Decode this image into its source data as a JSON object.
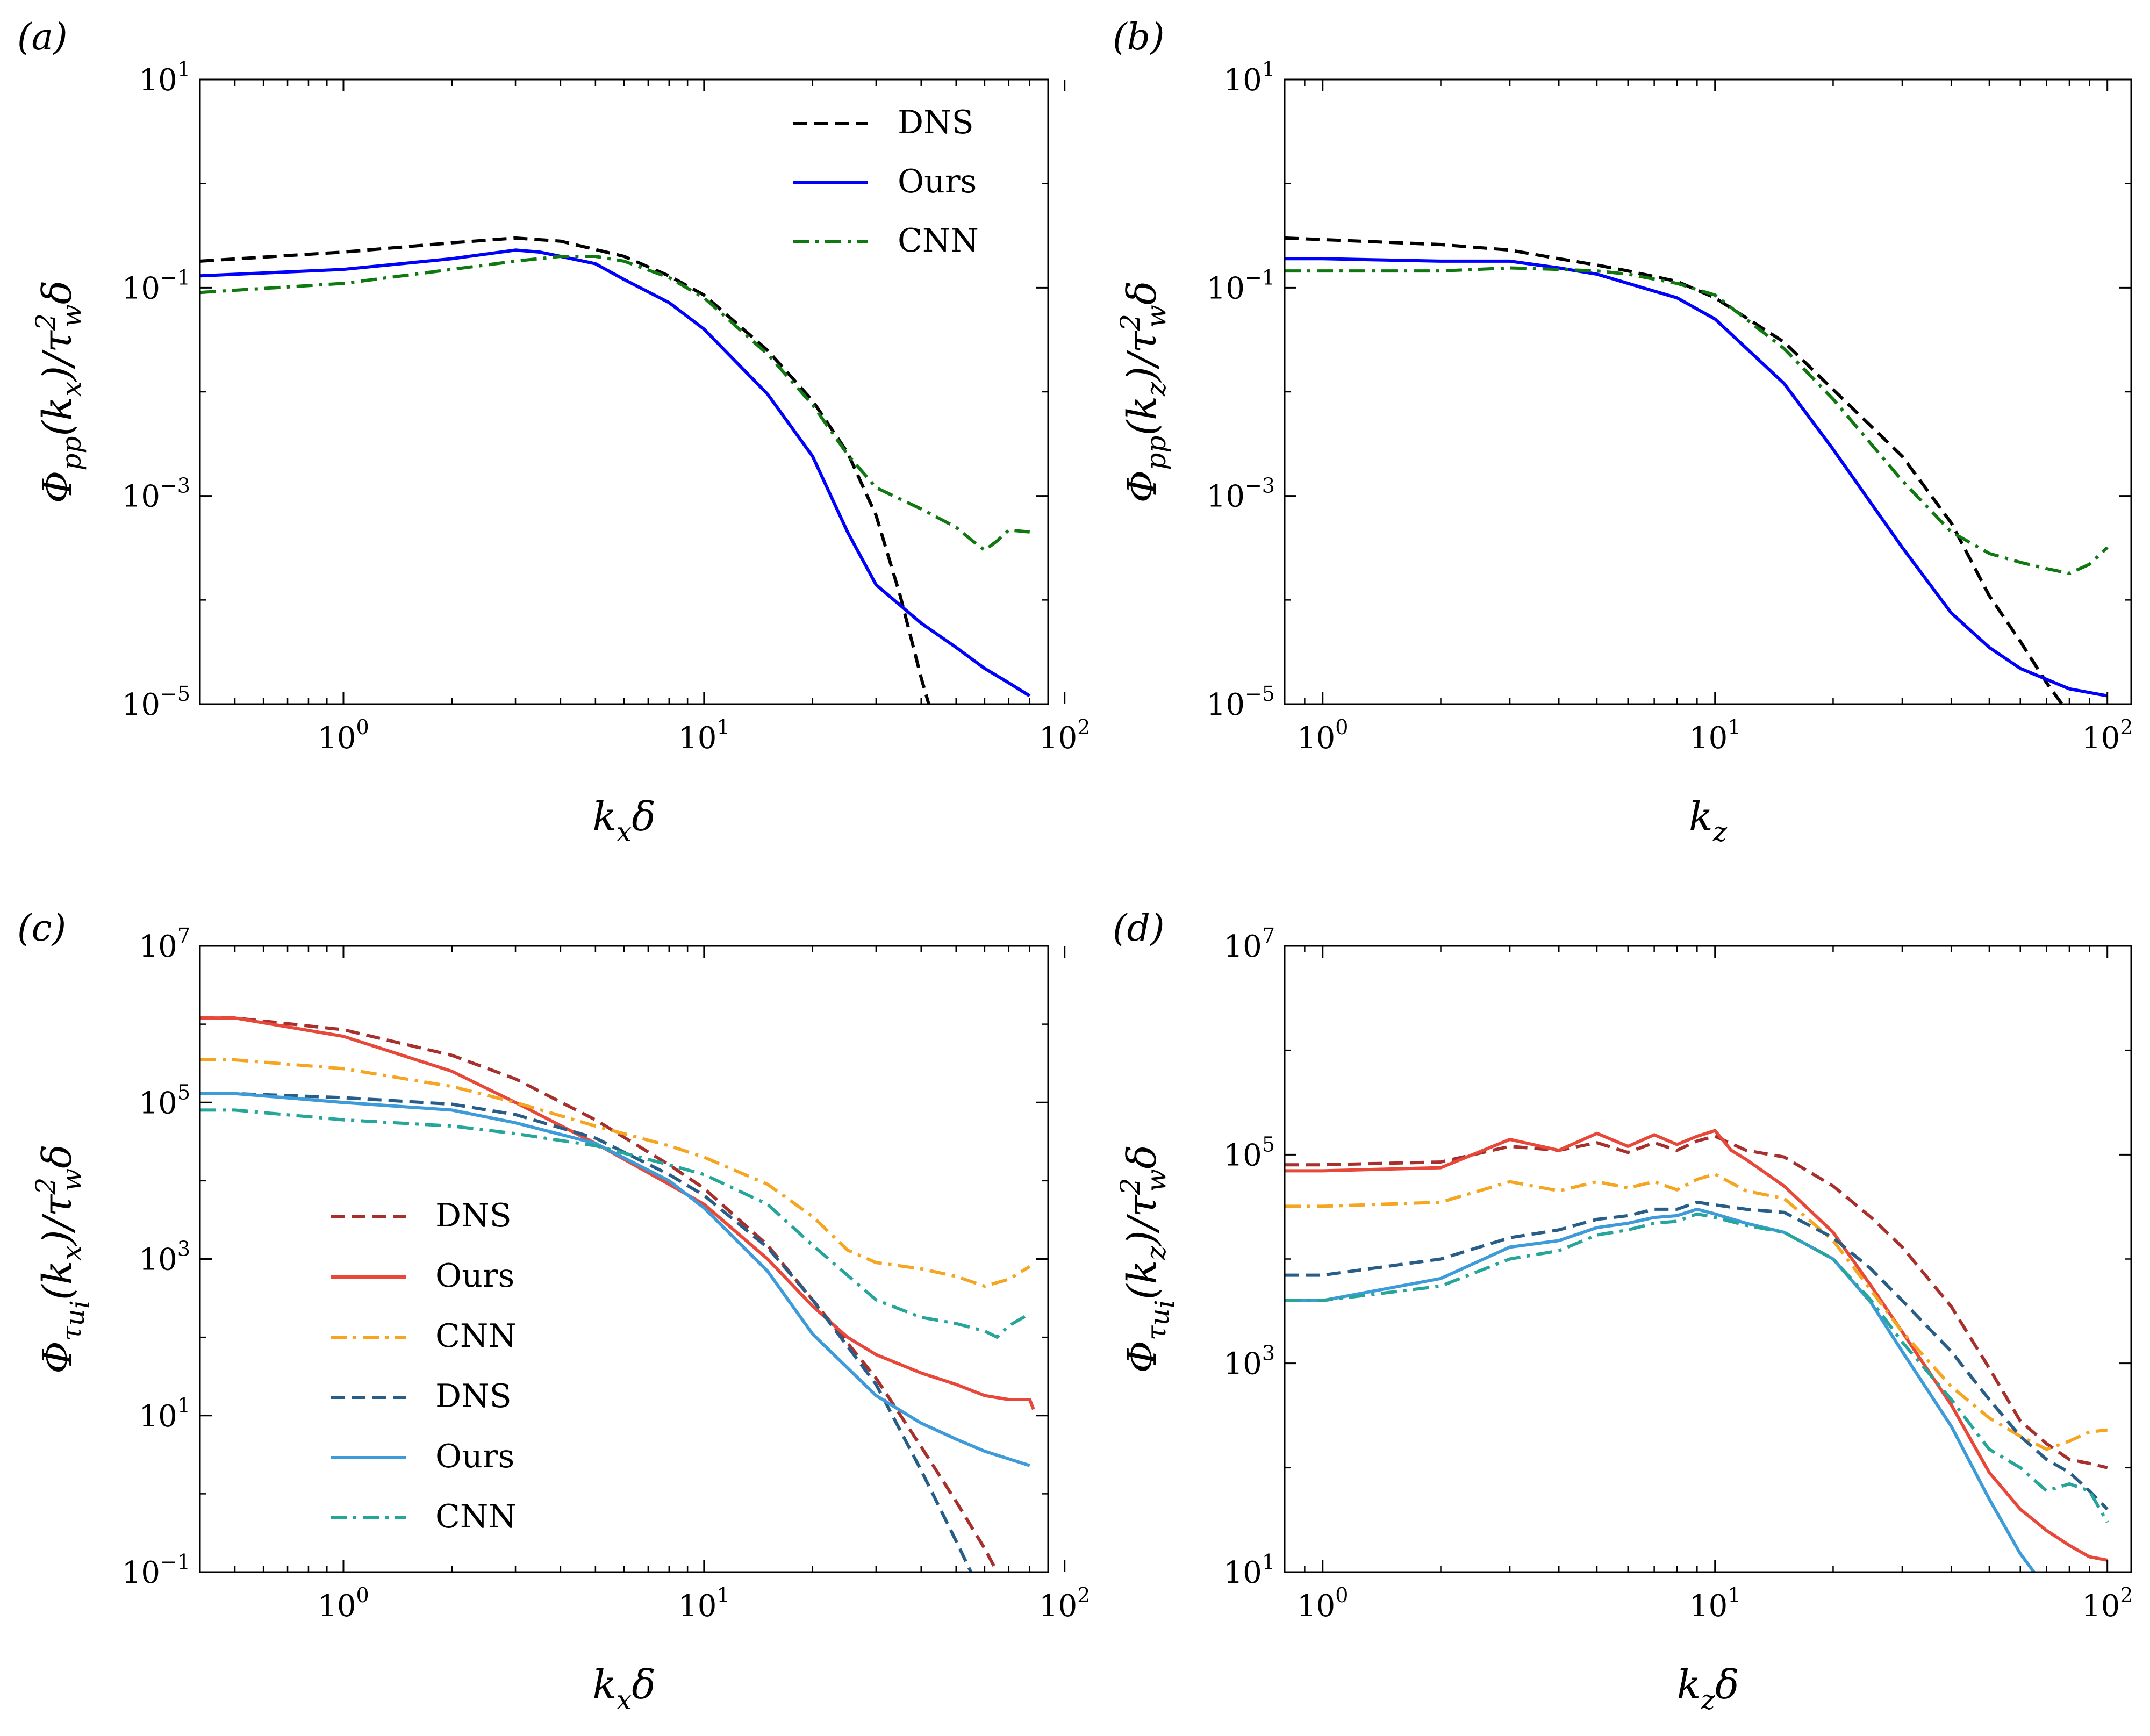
{
  "chart_data": [
    {
      "id": "a",
      "type": "line",
      "panel_label": "(a)",
      "xscale": "log",
      "yscale": "log",
      "xlim": [
        0.4,
        90
      ],
      "ylim": [
        1e-05,
        10
      ],
      "xticks": [
        {
          "base": "10",
          "exp": "0",
          "value": 1
        },
        {
          "base": "10",
          "exp": "1",
          "value": 10
        },
        {
          "base": "10",
          "exp": "2",
          "value": 100
        }
      ],
      "yticks": [
        {
          "base": "10",
          "exp": "−5",
          "value": 1e-05
        },
        {
          "base": "10",
          "exp": "−3",
          "value": 0.001
        },
        {
          "base": "10",
          "exp": "−1",
          "value": 0.1
        },
        {
          "base": "10",
          "exp": "1",
          "value": 10
        }
      ],
      "xlabel": {
        "main": "k",
        "sub": "x",
        "tail": "δ"
      },
      "ylabel": "Φ_pp(k_x)/τ_w^2δ",
      "legend": "top-right",
      "series": [
        {
          "name": "DNS",
          "color": "#000000",
          "dash": "dashed",
          "x": [
            0.4,
            1,
            2,
            3,
            4,
            6,
            8,
            10,
            15,
            20,
            25,
            30,
            35,
            40,
            42
          ],
          "y": [
            0.18,
            0.22,
            0.27,
            0.3,
            0.28,
            0.2,
            0.13,
            0.085,
            0.025,
            0.0082,
            0.0026,
            0.00065,
            0.00011,
            1.8e-05,
            1e-05
          ]
        },
        {
          "name": "Ours",
          "color": "#0000ff",
          "dash": "solid",
          "x": [
            0.4,
            1,
            2,
            3,
            3.5,
            4,
            5,
            6,
            8,
            10,
            15,
            20,
            25,
            30,
            40,
            50,
            60,
            70,
            80
          ],
          "y": [
            0.13,
            0.15,
            0.19,
            0.23,
            0.22,
            0.2,
            0.17,
            0.12,
            0.072,
            0.04,
            0.0095,
            0.0024,
            0.00045,
            0.00014,
            6e-05,
            3.5e-05,
            2.2e-05,
            1.6e-05,
            1.2e-05
          ]
        },
        {
          "name": "CNN",
          "color": "#107810",
          "dash": "dashdot",
          "x": [
            0.4,
            1,
            2,
            3,
            4,
            5,
            6,
            8,
            10,
            15,
            20,
            25,
            30,
            40,
            50,
            55,
            60,
            65,
            70,
            80
          ],
          "y": [
            0.09,
            0.11,
            0.15,
            0.18,
            0.2,
            0.2,
            0.18,
            0.125,
            0.08,
            0.023,
            0.0075,
            0.0025,
            0.0012,
            0.00075,
            0.0005,
            0.00038,
            0.0003,
            0.00037,
            0.00047,
            0.00045
          ]
        }
      ]
    },
    {
      "id": "b",
      "type": "line",
      "panel_label": "(b)",
      "xscale": "log",
      "yscale": "log",
      "xlim": [
        0.8,
        115
      ],
      "ylim": [
        1e-05,
        10
      ],
      "xticks": [
        {
          "base": "10",
          "exp": "0",
          "value": 1
        },
        {
          "base": "10",
          "exp": "1",
          "value": 10
        },
        {
          "base": "10",
          "exp": "2",
          "value": 100
        }
      ],
      "yticks": [
        {
          "base": "10",
          "exp": "−5",
          "value": 1e-05
        },
        {
          "base": "10",
          "exp": "−3",
          "value": 0.001
        },
        {
          "base": "10",
          "exp": "−1",
          "value": 0.1
        },
        {
          "base": "10",
          "exp": "1",
          "value": 10
        }
      ],
      "xlabel": {
        "main": "k",
        "sub": "z",
        "tail": ""
      },
      "ylabel": "Φ_pp(k_z)/τ_w^2δ",
      "series": [
        {
          "name": "DNS",
          "color": "#000000",
          "dash": "dashed",
          "x": [
            0.8,
            1,
            2,
            3,
            4,
            5,
            6,
            8,
            10,
            15,
            20,
            30,
            40,
            50,
            60,
            70,
            80
          ],
          "y": [
            0.3,
            0.29,
            0.26,
            0.23,
            0.19,
            0.165,
            0.145,
            0.115,
            0.08,
            0.03,
            0.0105,
            0.0024,
            0.00055,
            0.00011,
            4e-05,
            1.6e-05,
            8e-06
          ]
        },
        {
          "name": "Ours",
          "color": "#0000ff",
          "dash": "solid",
          "x": [
            0.8,
            1,
            2,
            3,
            4,
            5,
            6,
            8,
            10,
            15,
            20,
            30,
            40,
            50,
            60,
            80,
            100
          ],
          "y": [
            0.19,
            0.19,
            0.18,
            0.18,
            0.155,
            0.135,
            0.11,
            0.08,
            0.05,
            0.012,
            0.0028,
            0.00032,
            7.5e-05,
            3.5e-05,
            2.2e-05,
            1.4e-05,
            1.2e-05
          ]
        },
        {
          "name": "CNN",
          "color": "#107810",
          "dash": "dashdot",
          "x": [
            0.8,
            1,
            2,
            3,
            4,
            5,
            6,
            8,
            10,
            15,
            20,
            30,
            40,
            50,
            60,
            70,
            80,
            90,
            100
          ],
          "y": [
            0.145,
            0.145,
            0.145,
            0.155,
            0.15,
            0.145,
            0.135,
            0.11,
            0.085,
            0.026,
            0.0085,
            0.0014,
            0.00045,
            0.00028,
            0.00023,
            0.0002,
            0.00018,
            0.00022,
            0.00032
          ]
        }
      ]
    },
    {
      "id": "c",
      "type": "line",
      "panel_label": "(c)",
      "xscale": "log",
      "yscale": "log",
      "xlim": [
        0.4,
        90
      ],
      "ylim": [
        0.1,
        10000000.0
      ],
      "xticks": [
        {
          "base": "10",
          "exp": "0",
          "value": 1
        },
        {
          "base": "10",
          "exp": "1",
          "value": 10
        },
        {
          "base": "10",
          "exp": "2",
          "value": 100
        }
      ],
      "yticks": [
        {
          "base": "10",
          "exp": "−1",
          "value": 0.1
        },
        {
          "base": "10",
          "exp": "1",
          "value": 10
        },
        {
          "base": "10",
          "exp": "3",
          "value": 1000
        },
        {
          "base": "10",
          "exp": "5",
          "value": 100000.0
        },
        {
          "base": "10",
          "exp": "7",
          "value": 10000000.0
        }
      ],
      "xlabel": {
        "main": "k",
        "sub": "x",
        "tail": "δ"
      },
      "ylabel": "Φ_τu_i(k_x)/τ_w^2δ",
      "legend": "center-left",
      "series": [
        {
          "name": "DNS",
          "color": "#a8302c",
          "dash": "dashed",
          "x": [
            0.4,
            0.5,
            1,
            2,
            3,
            5,
            8,
            10,
            15,
            20,
            30,
            40,
            50,
            60,
            65
          ],
          "y": [
            1200000.0,
            1200000.0,
            850000.0,
            400000.0,
            200000.0,
            60000.0,
            16000.0,
            8000,
            1500,
            300,
            30,
            4,
            0.8,
            0.2,
            0.1
          ]
        },
        {
          "name": "Ours",
          "color": "#e8483a",
          "dash": "solid",
          "x": [
            0.4,
            0.5,
            1,
            2,
            3,
            5,
            8,
            10,
            15,
            20,
            25,
            30,
            40,
            50,
            60,
            70,
            80,
            82
          ],
          "y": [
            1200000.0,
            1200000.0,
            700000.0,
            250000.0,
            100000.0,
            30000.0,
            9000,
            5000,
            1000,
            250,
            100,
            60,
            35,
            25,
            18,
            16,
            16,
            12
          ]
        },
        {
          "name": "CNN",
          "color": "#f5a520",
          "dash": "dashdot",
          "x": [
            0.4,
            0.5,
            1,
            2,
            3,
            5,
            8,
            10,
            15,
            20,
            25,
            30,
            40,
            50,
            60,
            70,
            80
          ],
          "y": [
            350000.0,
            350000.0,
            270000.0,
            160000.0,
            100000.0,
            50000.0,
            28000.0,
            20000.0,
            9000,
            3500,
            1300,
            900,
            750,
            600,
            450,
            550,
            800
          ]
        },
        {
          "name": "DNS",
          "color": "#275d87",
          "dash": "dashed",
          "x": [
            0.4,
            0.5,
            1,
            2,
            3,
            5,
            8,
            10,
            15,
            20,
            30,
            40,
            50,
            55
          ],
          "y": [
            130000.0,
            130000.0,
            115000.0,
            95000.0,
            70000.0,
            35000.0,
            12000.0,
            6500,
            1400,
            300,
            25,
            2,
            0.25,
            0.1
          ]
        },
        {
          "name": "Ours",
          "color": "#3e9bd9",
          "dash": "solid",
          "x": [
            0.4,
            0.5,
            1,
            2,
            3,
            5,
            8,
            10,
            15,
            20,
            30,
            40,
            50,
            60,
            70,
            80
          ],
          "y": [
            130000.0,
            130000.0,
            100000.0,
            80000.0,
            55000.0,
            30000.0,
            10000.0,
            4500,
            700,
            110,
            18,
            8,
            5,
            3.5,
            2.8,
            2.3
          ]
        },
        {
          "name": "CNN",
          "color": "#26a69a",
          "dash": "dashdot",
          "x": [
            0.4,
            0.5,
            1,
            2,
            3,
            5,
            8,
            10,
            15,
            20,
            30,
            40,
            50,
            60,
            65,
            70,
            80
          ],
          "y": [
            80000.0,
            80000.0,
            60000.0,
            50000.0,
            40000.0,
            28000.0,
            16000.0,
            12000.0,
            5000,
            1500,
            300,
            180,
            150,
            120,
            100,
            140,
            200
          ]
        }
      ]
    },
    {
      "id": "d",
      "type": "line",
      "panel_label": "(d)",
      "xscale": "log",
      "yscale": "log",
      "xlim": [
        0.8,
        115
      ],
      "ylim": [
        10,
        10000000.0
      ],
      "xticks": [
        {
          "base": "10",
          "exp": "0",
          "value": 1
        },
        {
          "base": "10",
          "exp": "1",
          "value": 10
        },
        {
          "base": "10",
          "exp": "2",
          "value": 100
        }
      ],
      "yticks": [
        {
          "base": "10",
          "exp": "1",
          "value": 10
        },
        {
          "base": "10",
          "exp": "3",
          "value": 1000
        },
        {
          "base": "10",
          "exp": "5",
          "value": 100000.0
        },
        {
          "base": "10",
          "exp": "7",
          "value": 10000000.0
        }
      ],
      "xlabel": {
        "main": "k",
        "sub": "z",
        "tail": "δ"
      },
      "ylabel": "Φ_τu_i(k_z)/τ_w^2δ",
      "series": [
        {
          "name": "DNS",
          "color": "#a8302c",
          "dash": "dashed",
          "x": [
            0.8,
            1,
            2,
            3,
            4,
            5,
            6,
            7,
            8,
            9,
            10,
            12,
            15,
            20,
            25,
            30,
            40,
            50,
            60,
            70,
            80,
            90,
            100
          ],
          "y": [
            80000.0,
            80000.0,
            85000.0,
            120000.0,
            110000.0,
            130000.0,
            105000.0,
            130000.0,
            110000.0,
            135000.0,
            150000.0,
            110000.0,
            95000.0,
            50000.0,
            25000.0,
            13000.0,
            3500,
            900,
            280,
            170,
            120,
            110,
            100
          ]
        },
        {
          "name": "Ours",
          "color": "#e8483a",
          "dash": "solid",
          "x": [
            0.8,
            1,
            2,
            3,
            4,
            5,
            6,
            7,
            8,
            9,
            10,
            11,
            12,
            15,
            20,
            25,
            30,
            40,
            50,
            60,
            70,
            80,
            90,
            100
          ],
          "y": [
            70000.0,
            70000.0,
            75000.0,
            140000.0,
            110000.0,
            160000.0,
            120000.0,
            155000.0,
            125000.0,
            150000.0,
            170000.0,
            110000.0,
            90000.0,
            50000.0,
            18000.0,
            5500,
            2000,
            400,
            90,
            40,
            25,
            18,
            14,
            13
          ]
        },
        {
          "name": "CNN",
          "color": "#f5a520",
          "dash": "dashdot",
          "x": [
            0.8,
            1,
            2,
            3,
            4,
            5,
            6,
            7,
            8,
            9,
            10,
            12,
            15,
            20,
            25,
            30,
            40,
            50,
            60,
            70,
            80,
            90,
            100
          ],
          "y": [
            32000.0,
            32000.0,
            35000.0,
            55000.0,
            45000.0,
            55000.0,
            48000.0,
            55000.0,
            46000.0,
            58000.0,
            65000.0,
            45000.0,
            38000.0,
            15000.0,
            5000,
            2000,
            600,
            300,
            200,
            150,
            180,
            220,
            230
          ]
        },
        {
          "name": "DNS",
          "color": "#275d87",
          "dash": "dashed",
          "x": [
            0.8,
            1,
            2,
            3,
            4,
            5,
            6,
            7,
            8,
            9,
            10,
            12,
            15,
            20,
            25,
            30,
            40,
            50,
            60,
            70,
            80,
            90,
            100
          ],
          "y": [
            7000.0,
            7000.0,
            10000.0,
            16000.0,
            19000.0,
            24000.0,
            26000.0,
            30000.0,
            30000.0,
            35000.0,
            33000.0,
            30000.0,
            28000.0,
            16000.0,
            8000,
            4000,
            1300,
            450,
            200,
            120,
            90,
            60,
            40
          ]
        },
        {
          "name": "Ours",
          "color": "#3e9bd9",
          "dash": "solid",
          "x": [
            0.8,
            1,
            2,
            3,
            4,
            5,
            6,
            7,
            8,
            9,
            10,
            12,
            15,
            20,
            25,
            30,
            40,
            50,
            60,
            65
          ],
          "y": [
            4000.0,
            4000.0,
            6500.0,
            13000.0,
            15000.0,
            20000.0,
            22000.0,
            25000.0,
            26000.0,
            30000.0,
            27000.0,
            22000.0,
            18000.0,
            10000.0,
            3800,
            1300,
            250,
            50,
            15,
            10
          ]
        },
        {
          "name": "CNN",
          "color": "#26a69a",
          "dash": "dashdot",
          "x": [
            0.8,
            1,
            2,
            3,
            4,
            5,
            6,
            7,
            8,
            9,
            10,
            12,
            15,
            20,
            25,
            30,
            40,
            50,
            60,
            70,
            80,
            90,
            100
          ],
          "y": [
            4000.0,
            4000.0,
            5500.0,
            10000.0,
            12000.0,
            17000.0,
            19000.0,
            22000.0,
            23000.0,
            27000.0,
            25000.0,
            21000.0,
            18000.0,
            10000.0,
            4000,
            1600,
            450,
            150,
            100,
            60,
            70,
            60,
            30
          ]
        }
      ]
    }
  ]
}
